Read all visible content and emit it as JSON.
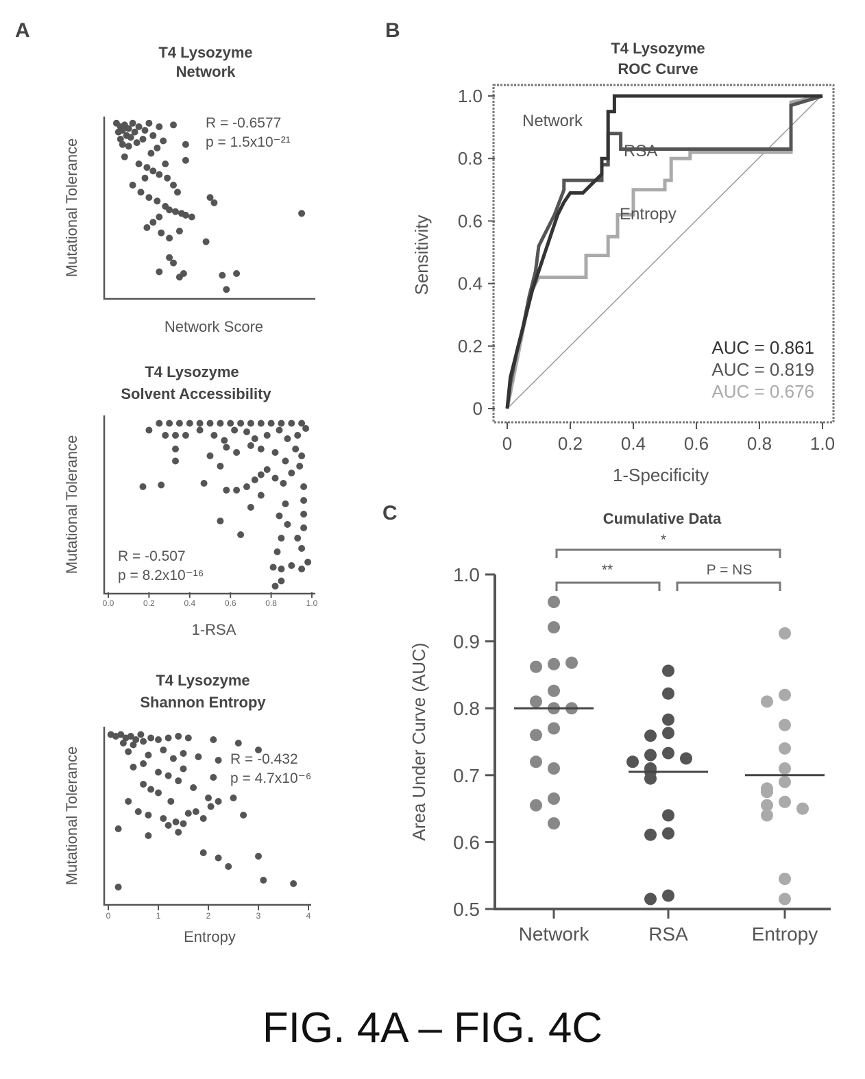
{
  "panel_labels": [
    "A",
    "B",
    "C"
  ],
  "figure_caption": "FIG. 4A – FIG. 4C",
  "chart_data": [
    {
      "id": "A1",
      "type": "scatter",
      "title": [
        "T4 Lysozyme",
        "Network"
      ],
      "xlabel": "Network Score",
      "ylabel": "Mutational Tolerance",
      "annotation": [
        "R = -0.6577",
        "p = 1.5x10⁻²¹"
      ],
      "xlim": [
        0,
        1
      ],
      "ylim": [
        0,
        1
      ],
      "xticks": [
        "",
        "",
        "0"
      ],
      "yticks": [
        "",
        "",
        "",
        "",
        ""
      ],
      "points": [
        [
          0.04,
          0.97
        ],
        [
          0.06,
          0.95
        ],
        [
          0.07,
          0.93
        ],
        [
          0.05,
          0.92
        ],
        [
          0.08,
          0.96
        ],
        [
          0.1,
          0.94
        ],
        [
          0.12,
          0.97
        ],
        [
          0.09,
          0.9
        ],
        [
          0.11,
          0.89
        ],
        [
          0.06,
          0.88
        ],
        [
          0.13,
          0.92
        ],
        [
          0.15,
          0.95
        ],
        [
          0.18,
          0.93
        ],
        [
          0.2,
          0.97
        ],
        [
          0.07,
          0.85
        ],
        [
          0.1,
          0.84
        ],
        [
          0.14,
          0.86
        ],
        [
          0.17,
          0.88
        ],
        [
          0.22,
          0.9
        ],
        [
          0.25,
          0.95
        ],
        [
          0.32,
          0.96
        ],
        [
          0.24,
          0.83
        ],
        [
          0.27,
          0.87
        ],
        [
          0.21,
          0.8
        ],
        [
          0.08,
          0.78
        ],
        [
          0.15,
          0.74
        ],
        [
          0.19,
          0.72
        ],
        [
          0.22,
          0.7
        ],
        [
          0.25,
          0.68
        ],
        [
          0.29,
          0.66
        ],
        [
          0.18,
          0.66
        ],
        [
          0.12,
          0.62
        ],
        [
          0.16,
          0.58
        ],
        [
          0.2,
          0.55
        ],
        [
          0.24,
          0.53
        ],
        [
          0.28,
          0.5
        ],
        [
          0.3,
          0.48
        ],
        [
          0.33,
          0.47
        ],
        [
          0.36,
          0.46
        ],
        [
          0.38,
          0.45
        ],
        [
          0.41,
          0.44
        ],
        [
          0.25,
          0.44
        ],
        [
          0.22,
          0.41
        ],
        [
          0.19,
          0.38
        ],
        [
          0.26,
          0.35
        ],
        [
          0.3,
          0.32
        ],
        [
          0.35,
          0.36
        ],
        [
          0.38,
          0.85
        ],
        [
          0.38,
          0.76
        ],
        [
          0.32,
          0.62
        ],
        [
          0.5,
          0.55
        ],
        [
          0.52,
          0.52
        ],
        [
          0.48,
          0.3
        ],
        [
          0.3,
          0.21
        ],
        [
          0.32,
          0.18
        ],
        [
          0.25,
          0.13
        ],
        [
          0.35,
          0.1
        ],
        [
          0.37,
          0.12
        ],
        [
          0.56,
          0.11
        ],
        [
          0.63,
          0.12
        ],
        [
          0.58,
          0.03
        ],
        [
          0.95,
          0.46
        ],
        [
          0.28,
          0.74
        ],
        [
          0.34,
          0.58
        ]
      ]
    },
    {
      "id": "A2",
      "type": "scatter",
      "title": [
        "T4 Lysozyme",
        "Solvent Accessibility"
      ],
      "xlabel": "1-RSA",
      "ylabel": "Mutational Tolerance",
      "annotation": [
        "R = -0.507",
        "p = 8.2x10⁻¹⁶"
      ],
      "xlim": [
        0,
        1
      ],
      "ylim": [
        0,
        1
      ],
      "xticks": [
        "0.0",
        "0.2",
        "0.4",
        "0.6",
        "0.8",
        "1.0"
      ],
      "points": [
        [
          0.2,
          0.93
        ],
        [
          0.25,
          0.97
        ],
        [
          0.3,
          0.97
        ],
        [
          0.35,
          0.97
        ],
        [
          0.4,
          0.97
        ],
        [
          0.45,
          0.97
        ],
        [
          0.5,
          0.97
        ],
        [
          0.55,
          0.97
        ],
        [
          0.6,
          0.97
        ],
        [
          0.65,
          0.97
        ],
        [
          0.7,
          0.97
        ],
        [
          0.75,
          0.97
        ],
        [
          0.8,
          0.97
        ],
        [
          0.85,
          0.97
        ],
        [
          0.9,
          0.97
        ],
        [
          0.95,
          0.97
        ],
        [
          0.28,
          0.9
        ],
        [
          0.33,
          0.9
        ],
        [
          0.38,
          0.9
        ],
        [
          0.45,
          0.93
        ],
        [
          0.52,
          0.9
        ],
        [
          0.57,
          0.87
        ],
        [
          0.62,
          0.93
        ],
        [
          0.68,
          0.92
        ],
        [
          0.72,
          0.88
        ],
        [
          0.78,
          0.9
        ],
        [
          0.84,
          0.93
        ],
        [
          0.88,
          0.88
        ],
        [
          0.93,
          0.9
        ],
        [
          0.97,
          0.94
        ],
        [
          0.33,
          0.82
        ],
        [
          0.33,
          0.75
        ],
        [
          0.5,
          0.78
        ],
        [
          0.55,
          0.72
        ],
        [
          0.58,
          0.83
        ],
        [
          0.63,
          0.8
        ],
        [
          0.7,
          0.84
        ],
        [
          0.75,
          0.82
        ],
        [
          0.82,
          0.8
        ],
        [
          0.87,
          0.75
        ],
        [
          0.92,
          0.82
        ],
        [
          0.95,
          0.78
        ],
        [
          0.17,
          0.6
        ],
        [
          0.26,
          0.61
        ],
        [
          0.47,
          0.62
        ],
        [
          0.58,
          0.58
        ],
        [
          0.63,
          0.58
        ],
        [
          0.68,
          0.6
        ],
        [
          0.72,
          0.64
        ],
        [
          0.75,
          0.67
        ],
        [
          0.78,
          0.7
        ],
        [
          0.82,
          0.65
        ],
        [
          0.86,
          0.62
        ],
        [
          0.9,
          0.68
        ],
        [
          0.94,
          0.72
        ],
        [
          0.96,
          0.6
        ],
        [
          0.96,
          0.52
        ],
        [
          0.96,
          0.44
        ],
        [
          0.96,
          0.36
        ],
        [
          0.93,
          0.3
        ],
        [
          0.95,
          0.24
        ],
        [
          0.87,
          0.5
        ],
        [
          0.84,
          0.43
        ],
        [
          0.88,
          0.38
        ],
        [
          0.65,
          0.32
        ],
        [
          0.85,
          0.3
        ],
        [
          0.83,
          0.22
        ],
        [
          0.81,
          0.13
        ],
        [
          0.85,
          0.12
        ],
        [
          0.9,
          0.14
        ],
        [
          0.95,
          0.12
        ],
        [
          0.98,
          0.16
        ],
        [
          0.85,
          0.05
        ],
        [
          0.82,
          0.02
        ],
        [
          0.55,
          0.4
        ],
        [
          0.75,
          0.55
        ],
        [
          0.7,
          0.48
        ]
      ]
    },
    {
      "id": "A3",
      "type": "scatter",
      "title": [
        "T4 Lysozyme",
        "Shannon Entropy"
      ],
      "xlabel": "Entropy",
      "ylabel": "Mutational Tolerance",
      "annotation": [
        "R = -0.432",
        "p = 4.7x10⁻⁶"
      ],
      "xlim": [
        0,
        4
      ],
      "ylim": [
        0,
        1
      ],
      "xticks": [
        "0",
        "1",
        "2",
        "3",
        "4"
      ],
      "points": [
        [
          0.05,
          0.97
        ],
        [
          0.15,
          0.96
        ],
        [
          0.25,
          0.97
        ],
        [
          0.35,
          0.95
        ],
        [
          0.45,
          0.96
        ],
        [
          0.55,
          0.94
        ],
        [
          0.65,
          0.97
        ],
        [
          0.3,
          0.92
        ],
        [
          0.5,
          0.91
        ],
        [
          0.7,
          0.93
        ],
        [
          0.85,
          0.95
        ],
        [
          1.0,
          0.94
        ],
        [
          1.2,
          0.95
        ],
        [
          1.4,
          0.96
        ],
        [
          1.6,
          0.95
        ],
        [
          2.1,
          0.94
        ],
        [
          2.6,
          0.92
        ],
        [
          3.0,
          0.88
        ],
        [
          0.4,
          0.87
        ],
        [
          0.8,
          0.85
        ],
        [
          1.1,
          0.88
        ],
        [
          1.3,
          0.83
        ],
        [
          1.5,
          0.86
        ],
        [
          1.8,
          0.84
        ],
        [
          2.2,
          0.82
        ],
        [
          0.5,
          0.78
        ],
        [
          0.7,
          0.8
        ],
        [
          1.0,
          0.75
        ],
        [
          1.2,
          0.73
        ],
        [
          1.5,
          0.77
        ],
        [
          1.4,
          0.7
        ],
        [
          1.7,
          0.66
        ],
        [
          2.1,
          0.72
        ],
        [
          0.7,
          0.68
        ],
        [
          0.85,
          0.65
        ],
        [
          1.0,
          0.63
        ],
        [
          0.4,
          0.58
        ],
        [
          0.6,
          0.52
        ],
        [
          0.8,
          0.5
        ],
        [
          1.1,
          0.48
        ],
        [
          1.2,
          0.44
        ],
        [
          1.35,
          0.46
        ],
        [
          1.5,
          0.45
        ],
        [
          1.6,
          0.51
        ],
        [
          1.75,
          0.52
        ],
        [
          1.9,
          0.48
        ],
        [
          2.05,
          0.55
        ],
        [
          2.2,
          0.58
        ],
        [
          2.5,
          0.6
        ],
        [
          2.7,
          0.5
        ],
        [
          0.2,
          0.42
        ],
        [
          0.8,
          0.38
        ],
        [
          1.4,
          0.4
        ],
        [
          1.9,
          0.28
        ],
        [
          2.2,
          0.25
        ],
        [
          2.4,
          0.2
        ],
        [
          3.0,
          0.26
        ],
        [
          3.1,
          0.12
        ],
        [
          3.7,
          0.1
        ],
        [
          0.2,
          0.08
        ],
        [
          2.0,
          0.6
        ],
        [
          1.25,
          0.58
        ]
      ]
    },
    {
      "id": "B",
      "type": "line",
      "title": [
        "T4 Lysozyme",
        "ROC Curve"
      ],
      "xlabel": "1-Specificity",
      "ylabel": "Sensitivity",
      "xlim": [
        0,
        1
      ],
      "ylim": [
        0,
        1
      ],
      "xticks": [
        "0",
        "0.2",
        "0.4",
        "0.6",
        "0.8",
        "1.0"
      ],
      "yticks": [
        "0",
        "0.2",
        "0.4",
        "0.6",
        "0.8",
        "1.0"
      ],
      "legend_labels": [
        "Network",
        "RSA",
        "Entropy"
      ],
      "auc_labels": [
        "AUC = 0.861",
        "AUC = 0.819",
        "AUC = 0.676"
      ],
      "series": [
        {
          "name": "Network",
          "color": "#333333",
          "x": [
            0,
            0.01,
            0.02,
            0.03,
            0.04,
            0.05,
            0.06,
            0.08,
            0.1,
            0.12,
            0.14,
            0.16,
            0.18,
            0.2,
            0.24,
            0.28,
            0.3,
            0.3,
            0.32,
            0.32,
            0.34,
            0.34,
            0.55,
            0.55,
            0.9,
            1.0
          ],
          "y": [
            0,
            0.1,
            0.14,
            0.18,
            0.22,
            0.26,
            0.3,
            0.38,
            0.44,
            0.5,
            0.56,
            0.62,
            0.66,
            0.69,
            0.69,
            0.73,
            0.75,
            0.8,
            0.8,
            0.95,
            0.95,
            1.0,
            1.0,
            1.0,
            1.0,
            1.0
          ]
        },
        {
          "name": "RSA",
          "color": "#555555",
          "x": [
            0,
            0.01,
            0.03,
            0.05,
            0.07,
            0.09,
            0.1,
            0.12,
            0.15,
            0.18,
            0.18,
            0.28,
            0.3,
            0.3,
            0.32,
            0.32,
            0.36,
            0.36,
            0.48,
            0.48,
            0.9,
            0.9,
            1.0
          ],
          "y": [
            0,
            0.08,
            0.18,
            0.26,
            0.36,
            0.44,
            0.52,
            0.56,
            0.62,
            0.7,
            0.73,
            0.73,
            0.73,
            0.78,
            0.78,
            0.88,
            0.88,
            0.83,
            0.83,
            0.83,
            0.83,
            0.97,
            1.0
          ]
        },
        {
          "name": "Entropy",
          "color": "#aaaaaa",
          "x": [
            0,
            0.02,
            0.04,
            0.06,
            0.08,
            0.1,
            0.12,
            0.25,
            0.25,
            0.32,
            0.32,
            0.35,
            0.35,
            0.4,
            0.4,
            0.5,
            0.5,
            0.52,
            0.52,
            0.58,
            0.58,
            0.9,
            0.9,
            1.0
          ],
          "y": [
            0,
            0.1,
            0.2,
            0.3,
            0.38,
            0.42,
            0.42,
            0.42,
            0.49,
            0.49,
            0.55,
            0.55,
            0.62,
            0.62,
            0.7,
            0.7,
            0.73,
            0.73,
            0.8,
            0.8,
            0.82,
            0.82,
            0.98,
            1.0
          ]
        }
      ]
    },
    {
      "id": "C",
      "type": "scatter",
      "title": "Cumulative Data",
      "ylabel": "Area Under Curve (AUC)",
      "categories": [
        "Network",
        "RSA",
        "Entropy"
      ],
      "ylim": [
        0.5,
        1.0
      ],
      "yticks": [
        "0.5",
        "0.6",
        "0.7",
        "0.8",
        "0.9",
        "1.0"
      ],
      "significance": [
        "*",
        "**",
        "P = NS"
      ],
      "medians": [
        0.8,
        0.705,
        0.7
      ],
      "series": [
        {
          "name": "Network",
          "values": [
            0.959,
            0.921,
            0.866,
            0.862,
            0.868,
            0.826,
            0.8,
            0.81,
            0.8,
            0.77,
            0.76,
            0.71,
            0.72,
            0.665,
            0.655,
            0.628
          ]
        },
        {
          "name": "RSA",
          "values": [
            0.856,
            0.822,
            0.783,
            0.763,
            0.759,
            0.733,
            0.73,
            0.725,
            0.72,
            0.71,
            0.705,
            0.695,
            0.64,
            0.613,
            0.611,
            0.52,
            0.515
          ]
        },
        {
          "name": "Entropy",
          "values": [
            0.912,
            0.82,
            0.81,
            0.775,
            0.74,
            0.71,
            0.69,
            0.68,
            0.675,
            0.66,
            0.655,
            0.65,
            0.64,
            0.545,
            0.515
          ]
        }
      ]
    }
  ]
}
